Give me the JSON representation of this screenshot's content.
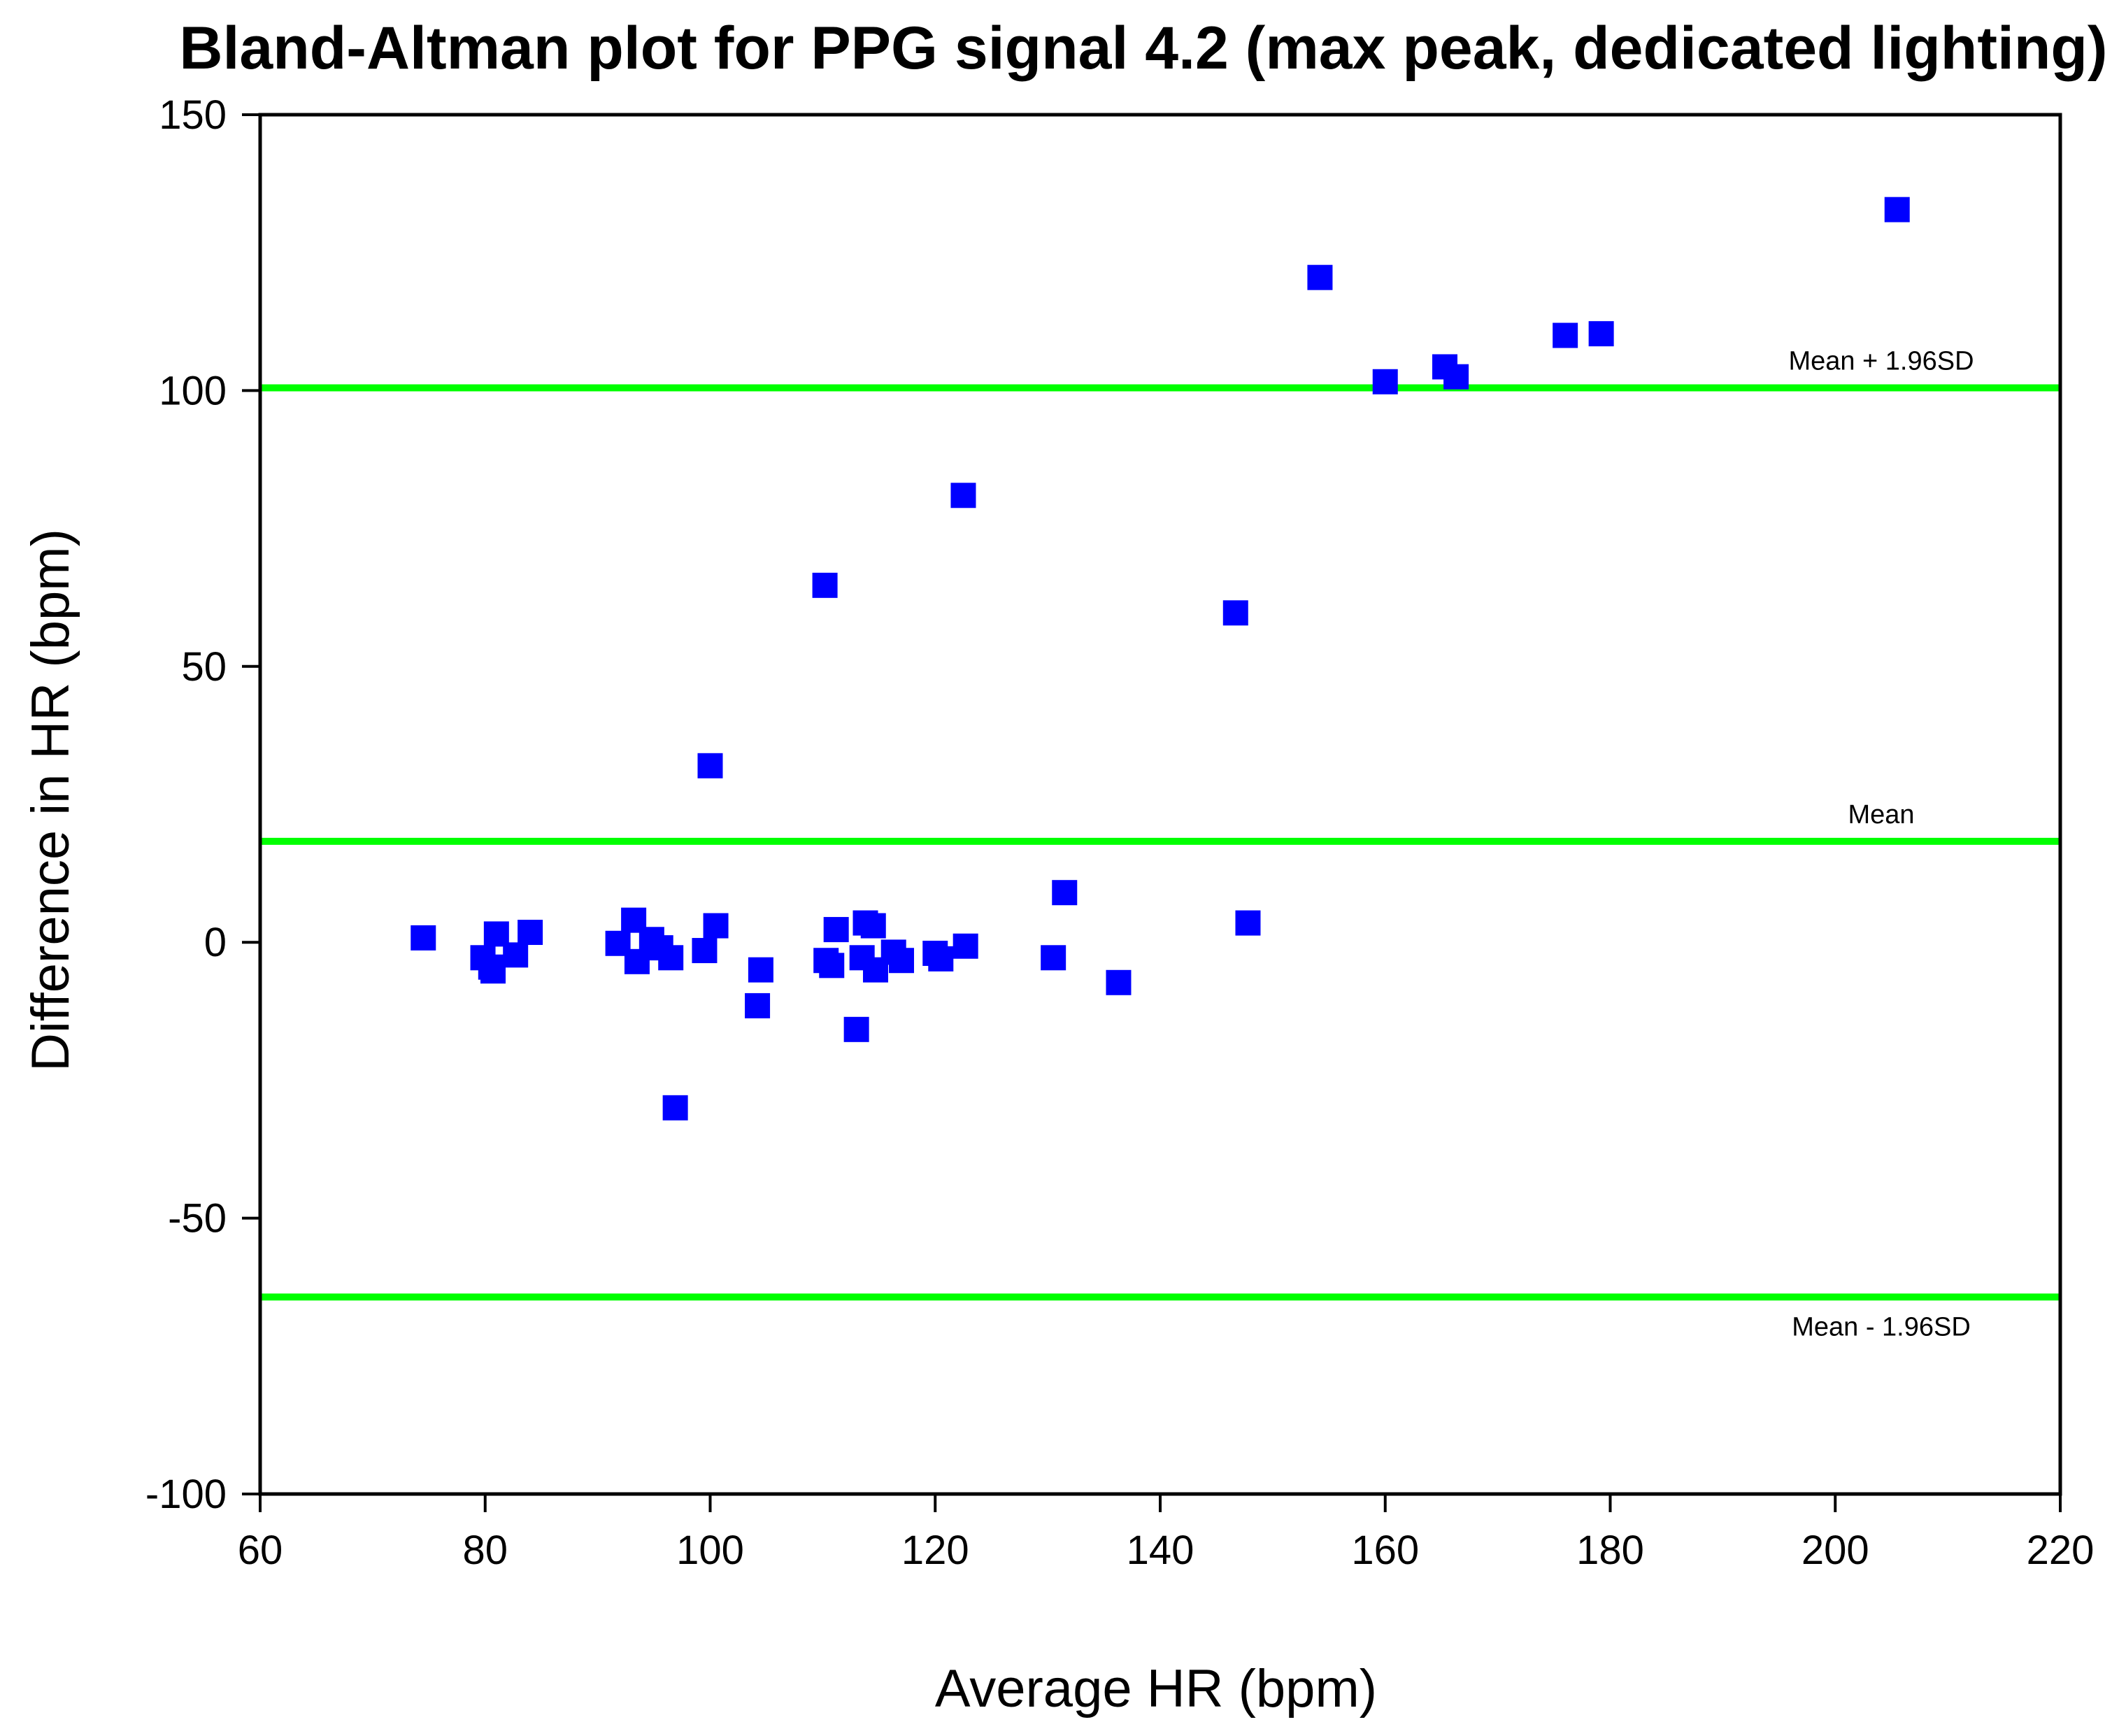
{
  "chart_data": {
    "type": "scatter",
    "title": "Bland-Altman plot for PPG signal 4.2 (max peak, dedicated lighting)",
    "xlabel": "Average HR (bpm)",
    "ylabel": "Difference in HR (bpm)",
    "xlim": [
      60,
      220
    ],
    "ylim": [
      -100,
      150
    ],
    "xticks": [
      60,
      80,
      100,
      120,
      140,
      160,
      180,
      200,
      220
    ],
    "yticks": [
      -100,
      -50,
      0,
      50,
      100,
      150
    ],
    "grid": false,
    "marker": "square",
    "marker_color": "#0000ff",
    "line_color": "#00ff00",
    "reference_lines": [
      {
        "name": "Mean + 1.96SD",
        "label": "Mean + 1.96SD",
        "y": 100.5
      },
      {
        "name": "Mean",
        "label": "Mean",
        "y": 18.3
      },
      {
        "name": "Mean - 1.96SD",
        "label": "Mean - 1.96SD",
        "y": -64.3
      }
    ],
    "points": [
      {
        "x": 74.5,
        "y": 0.8
      },
      {
        "x": 79.8,
        "y": -2.8
      },
      {
        "x": 80.5,
        "y": -4.5
      },
      {
        "x": 80.7,
        "y": -5.2
      },
      {
        "x": 81.0,
        "y": 1.5
      },
      {
        "x": 82.7,
        "y": -2.3
      },
      {
        "x": 84.0,
        "y": 1.8
      },
      {
        "x": 91.8,
        "y": -0.2
      },
      {
        "x": 93.2,
        "y": 4.0
      },
      {
        "x": 93.5,
        "y": -3.5
      },
      {
        "x": 94.8,
        "y": 0.5
      },
      {
        "x": 95.6,
        "y": -1.0
      },
      {
        "x": 96.5,
        "y": -2.8
      },
      {
        "x": 96.9,
        "y": -30.0
      },
      {
        "x": 99.5,
        "y": -1.5
      },
      {
        "x": 100.0,
        "y": 32.0
      },
      {
        "x": 100.5,
        "y": 3.0
      },
      {
        "x": 104.2,
        "y": -11.5
      },
      {
        "x": 104.5,
        "y": -5.0
      },
      {
        "x": 110.2,
        "y": 64.7
      },
      {
        "x": 110.3,
        "y": -3.3
      },
      {
        "x": 110.8,
        "y": -4.2
      },
      {
        "x": 111.2,
        "y": 2.3
      },
      {
        "x": 113.0,
        "y": -15.8
      },
      {
        "x": 113.5,
        "y": -2.8
      },
      {
        "x": 113.8,
        "y": 3.5
      },
      {
        "x": 114.5,
        "y": 3.0
      },
      {
        "x": 114.7,
        "y": -5.0
      },
      {
        "x": 116.3,
        "y": -1.8
      },
      {
        "x": 117.0,
        "y": -3.3
      },
      {
        "x": 120.0,
        "y": -2.0
      },
      {
        "x": 120.5,
        "y": -3.0
      },
      {
        "x": 122.5,
        "y": 81.0
      },
      {
        "x": 122.7,
        "y": -0.7
      },
      {
        "x": 130.5,
        "y": -2.8
      },
      {
        "x": 131.5,
        "y": 9.0
      },
      {
        "x": 136.3,
        "y": -7.3
      },
      {
        "x": 146.7,
        "y": 59.7
      },
      {
        "x": 147.8,
        "y": 3.5
      },
      {
        "x": 154.2,
        "y": 120.5
      },
      {
        "x": 160.0,
        "y": 101.6
      },
      {
        "x": 165.3,
        "y": 104.3
      },
      {
        "x": 166.3,
        "y": 102.5
      },
      {
        "x": 176.0,
        "y": 110.0
      },
      {
        "x": 179.2,
        "y": 110.3
      },
      {
        "x": 205.5,
        "y": 132.8
      }
    ]
  }
}
